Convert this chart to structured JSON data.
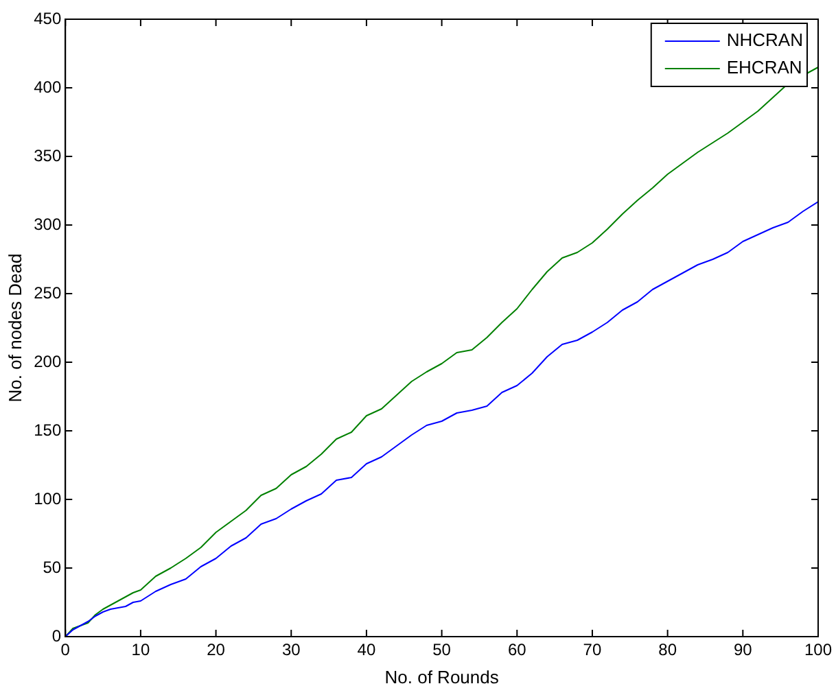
{
  "chart_data": {
    "type": "line",
    "xlabel": "No. of Rounds",
    "ylabel": "No. of nodes Dead",
    "x": [
      0,
      1,
      2,
      3,
      4,
      5,
      6,
      7,
      8,
      9,
      10,
      12,
      14,
      16,
      18,
      20,
      22,
      24,
      26,
      28,
      30,
      32,
      34,
      36,
      38,
      40,
      42,
      44,
      46,
      48,
      50,
      52,
      54,
      56,
      58,
      60,
      62,
      64,
      66,
      68,
      70,
      72,
      74,
      76,
      78,
      80,
      82,
      84,
      86,
      88,
      90,
      92,
      94,
      96,
      98,
      100
    ],
    "series": [
      {
        "name": "NHCRAN",
        "color": "#0000ff",
        "values": [
          0,
          5,
          8,
          11,
          15,
          18,
          20,
          21,
          22,
          25,
          26,
          33,
          38,
          42,
          51,
          57,
          66,
          72,
          82,
          86,
          93,
          99,
          104,
          114,
          116,
          126,
          131,
          139,
          147,
          154,
          157,
          163,
          165,
          168,
          178,
          183,
          192,
          204,
          213,
          216,
          222,
          229,
          238,
          244,
          253,
          259,
          265,
          271,
          275,
          280,
          288,
          293,
          298,
          302,
          310,
          317
        ]
      },
      {
        "name": "EHCRAN",
        "color": "#008000",
        "values": [
          0,
          6,
          8,
          10,
          16,
          20,
          23,
          26,
          29,
          32,
          34,
          44,
          50,
          57,
          65,
          76,
          84,
          92,
          103,
          108,
          118,
          124,
          133,
          144,
          149,
          161,
          166,
          176,
          186,
          193,
          199,
          207,
          209,
          218,
          229,
          239,
          253,
          266,
          276,
          280,
          287,
          297,
          308,
          318,
          327,
          337,
          345,
          353,
          360,
          367,
          375,
          383,
          393,
          403,
          null,
          415
        ]
      }
    ],
    "xlim": [
      0,
      100
    ],
    "xticks": [
      0,
      10,
      20,
      30,
      40,
      50,
      60,
      70,
      80,
      90,
      100
    ],
    "ylim": [
      0,
      450
    ],
    "yticks": [
      0,
      50,
      100,
      150,
      200,
      250,
      300,
      350,
      400,
      450
    ],
    "grid": false,
    "legend": "top right",
    "marker": "none",
    "line_style": "solid"
  }
}
